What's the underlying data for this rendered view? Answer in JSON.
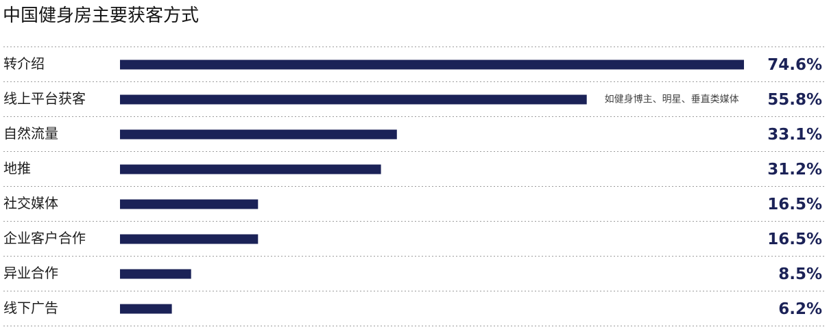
{
  "title": "中国健身房主要获客方式",
  "colors": {
    "bar": "#1b2257",
    "value_text": "#1b2257",
    "divider": "#9a9a9a"
  },
  "chart_data": {
    "type": "bar",
    "orientation": "horizontal",
    "title": "中国健身房主要获客方式",
    "categories": [
      "转介绍",
      "线上平台获客",
      "自然流量",
      "地推",
      "社交媒体",
      "企业客户合作",
      "异业合作",
      "线下广告"
    ],
    "values": [
      74.6,
      55.8,
      33.1,
      31.2,
      16.5,
      16.5,
      8.5,
      6.2
    ],
    "value_labels": [
      "74.6%",
      "55.8%",
      "33.1%",
      "31.2%",
      "16.5%",
      "16.5%",
      "8.5%",
      "6.2%"
    ],
    "unit": "%",
    "xlim": [
      0,
      74.6
    ],
    "grid": false,
    "dividers": "dashed",
    "annotations": [
      {
        "category": "线上平台获客",
        "text": "如健身博主、明星、垂直类媒体"
      }
    ]
  }
}
